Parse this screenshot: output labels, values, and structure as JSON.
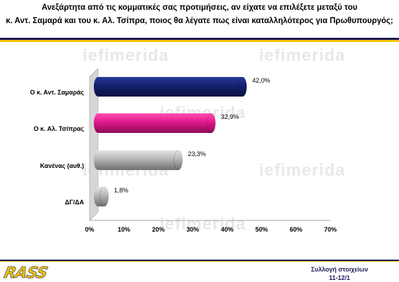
{
  "title_lines": [
    "Ανεξάρτητα από τις κομματικές σας προτιμήσεις, αν είχατε να επιλέξετε μεταξύ του",
    "κ. Αντ. Σαμαρά και του κ. Αλ. Τσίπρα, ποιος θα λέγατε πως είναι καταλληλότερος για Πρωθυπουργός;"
  ],
  "watermark": "iefimerida",
  "footer": {
    "logo": "RASS",
    "line1": "Συλλογή στοιχείων",
    "line2": "11-12/1"
  },
  "colors": {
    "navy": "#1a1a5a",
    "gold": "#f5c400",
    "series": [
      "#13206e",
      "#e0188c",
      "#b4b4b4",
      "#b4b4b4"
    ]
  },
  "chart_data": {
    "type": "bar",
    "orientation": "horizontal",
    "categories": [
      "Ο κ. Αντ. Σαμαράς",
      "Ο κ. Αλ. Τσίπρας",
      "Κανένας (αυθ.)",
      "ΔΓ/ΔΑ"
    ],
    "values": [
      42.0,
      32.9,
      23.3,
      1.8
    ],
    "value_labels": [
      "42,0%",
      "32,9%",
      "23,3%",
      "1,8%"
    ],
    "xlim": [
      0,
      70
    ],
    "xticks": [
      "0%",
      "10%",
      "20%",
      "30%",
      "40%",
      "50%",
      "60%",
      "70%"
    ],
    "grid": false,
    "legend": "none"
  }
}
